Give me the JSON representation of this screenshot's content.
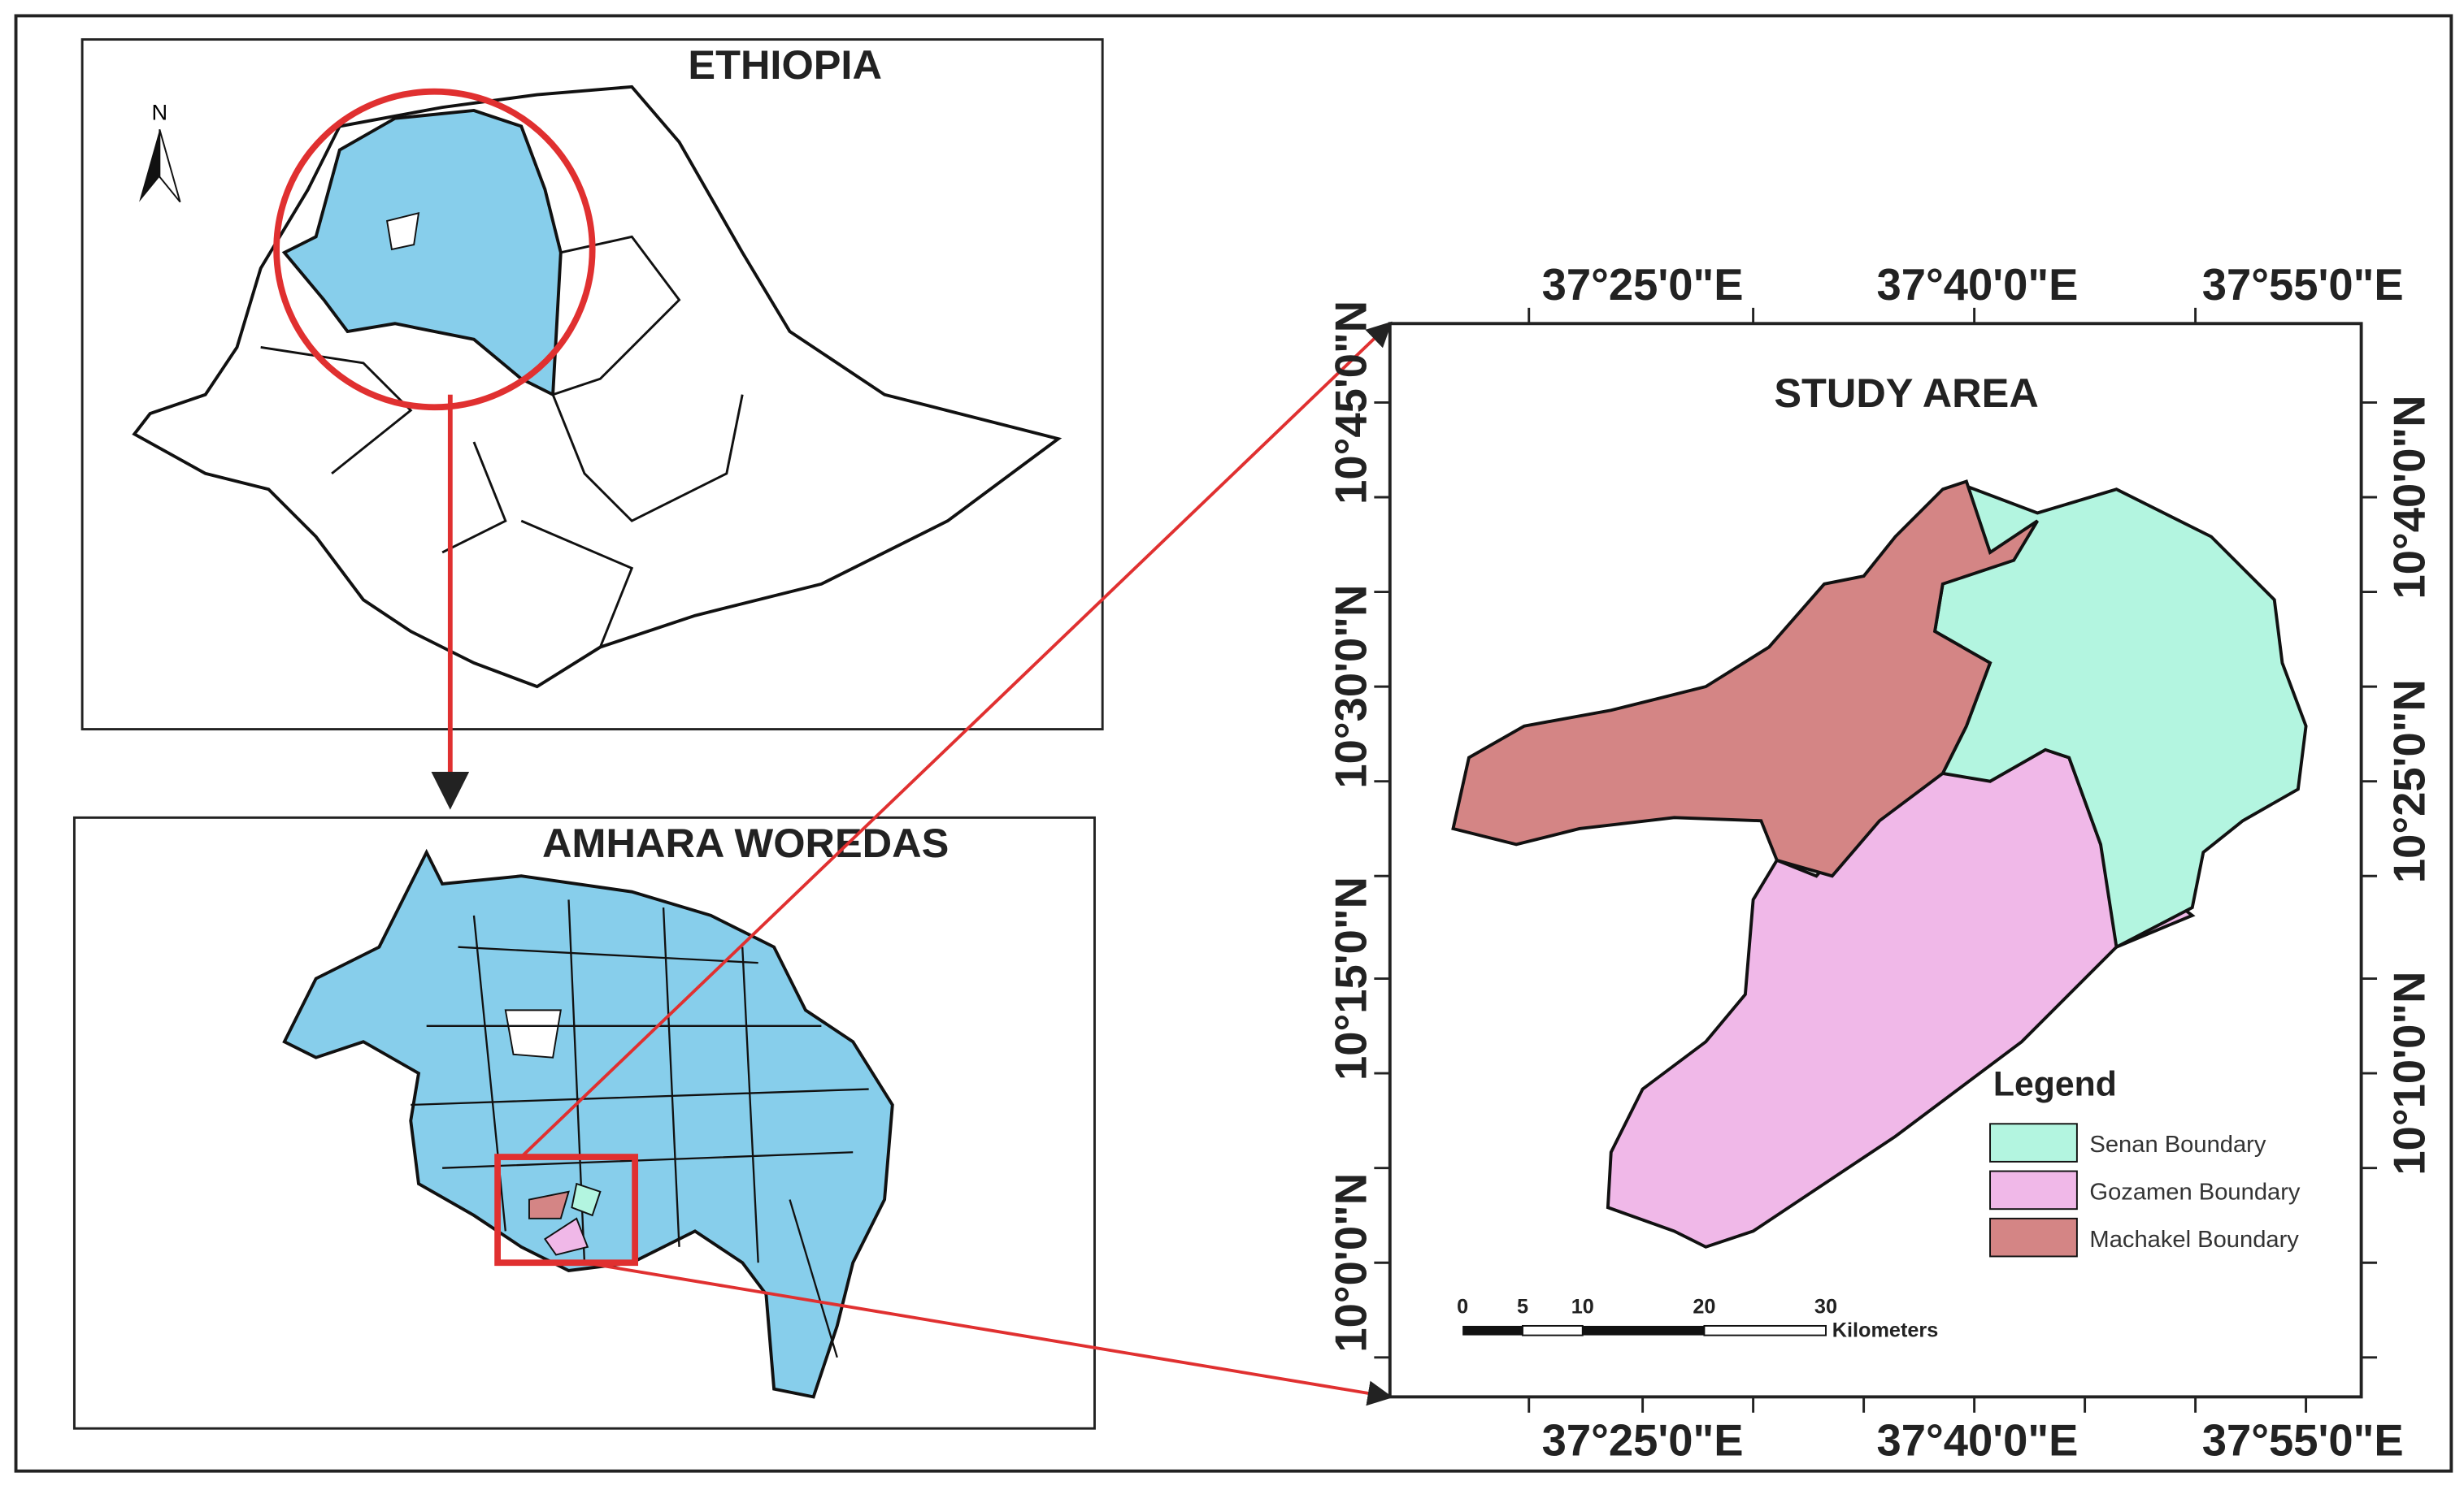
{
  "ethiopia_panel": {
    "title": "ETHIOPIA",
    "north": "N"
  },
  "amhara_panel": {
    "title": "AMHARA WOREDAS"
  },
  "study_area_panel": {
    "title": "STUDY AREA",
    "top_longitudes": [
      "37°25'0\"E",
      "37°40'0\"E",
      "37°55'0\"E"
    ],
    "bottom_longitudes": [
      "37°25'0\"E",
      "37°40'0\"E",
      "37°55'0\"E"
    ],
    "left_latitudes": [
      "10°45'0\"N",
      "10°30'0\"N",
      "10°15'0\"N",
      "10°0'0\"N"
    ],
    "right_latitudes": [
      "10°40'0\"N",
      "10°25'0\"N",
      "10°10'0\"N"
    ],
    "legend": {
      "title": "Legend",
      "items": [
        "Senan Boundary",
        "Gozamen Boundary",
        "Machakel Boundary"
      ]
    },
    "scale_bar": {
      "ticks": [
        "0",
        "5",
        "10",
        "20",
        "30"
      ],
      "unit": "Kilometers"
    }
  }
}
